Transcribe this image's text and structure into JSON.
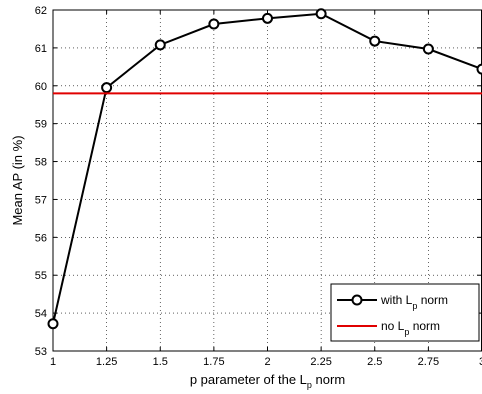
{
  "chart_data": {
    "type": "line",
    "xlabel": "p parameter of the L",
    "xlabel_sub": "p",
    "xlabel_tail": " norm",
    "ylabel": "Mean AP (in %)",
    "xlim": [
      1,
      3
    ],
    "ylim": [
      53,
      62
    ],
    "grid": true,
    "legend_position": "bottom-right",
    "x_ticks": [
      1,
      1.25,
      1.5,
      1.75,
      2,
      2.25,
      2.5,
      2.75,
      3
    ],
    "x_tick_labels": [
      "1",
      "1.25",
      "1.5",
      "1.75",
      "2",
      "2.25",
      "2.5",
      "2.75",
      "3"
    ],
    "y_ticks": [
      53,
      54,
      55,
      56,
      57,
      58,
      59,
      60,
      61,
      62
    ],
    "y_tick_labels": [
      "53",
      "54",
      "55",
      "56",
      "57",
      "58",
      "59",
      "60",
      "61",
      "62"
    ],
    "series": [
      {
        "legend_label": "with L",
        "legend_sub": "p",
        "legend_tail": " norm",
        "color": "#000000",
        "marker": "circle",
        "x": [
          1,
          1.25,
          1.5,
          1.75,
          2,
          2.25,
          2.5,
          2.75,
          3
        ],
        "values": [
          53.72,
          59.95,
          61.08,
          61.63,
          61.78,
          61.9,
          61.18,
          60.97,
          60.44
        ]
      },
      {
        "legend_label": "no L",
        "legend_sub": "p",
        "legend_tail": " norm",
        "color": "#e00000",
        "marker": "none",
        "x": [
          1,
          3
        ],
        "values": [
          59.8,
          59.8
        ]
      }
    ]
  }
}
